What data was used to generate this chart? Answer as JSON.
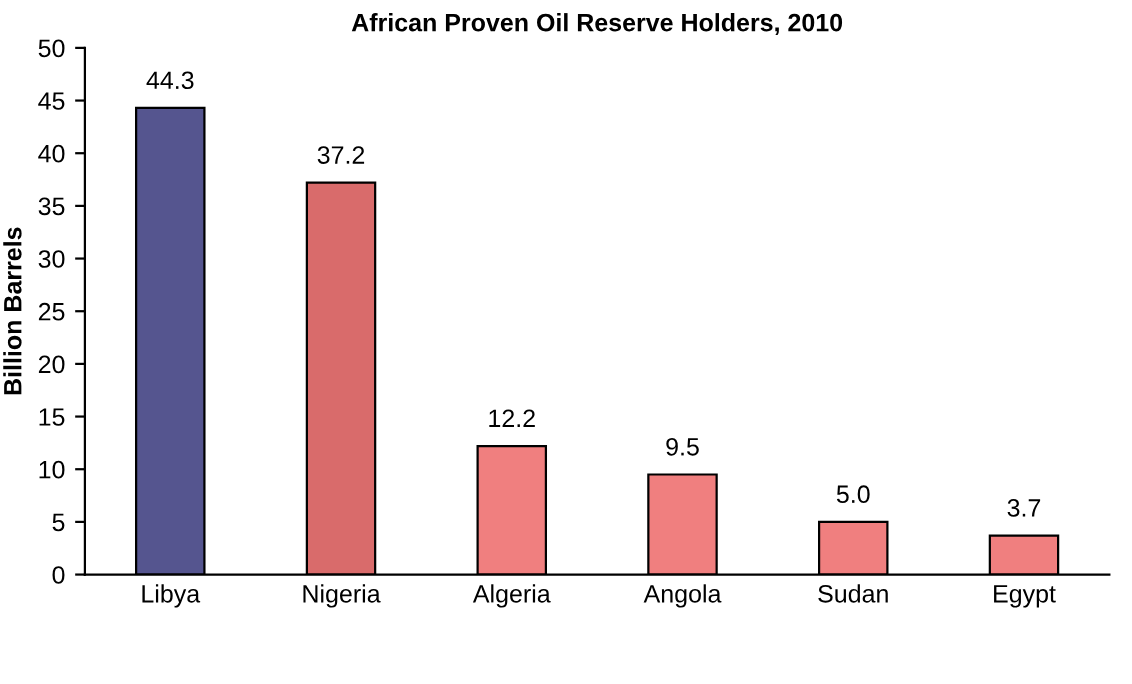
{
  "chart_data": {
    "type": "bar",
    "title": "African Proven Oil Reserve Holders, 2010",
    "ylabel": "Billion Barrels",
    "categories": [
      "Libya",
      "Nigeria",
      "Algeria",
      "Angola",
      "Sudan",
      "Egypt"
    ],
    "values": [
      44.3,
      37.2,
      12.2,
      9.5,
      5.0,
      3.7
    ],
    "value_labels": [
      "44.3",
      "37.2",
      "12.2",
      "9.5",
      "5.0",
      "3.7"
    ],
    "colors": [
      "#55558f",
      "#d96b6b",
      "#f07f7f",
      "#f07f7f",
      "#f07f7f",
      "#f07f7f"
    ],
    "ylim": [
      0,
      50
    ],
    "yticks": [
      0,
      5,
      10,
      15,
      20,
      25,
      30,
      35,
      40,
      45,
      50
    ],
    "grid": false
  }
}
